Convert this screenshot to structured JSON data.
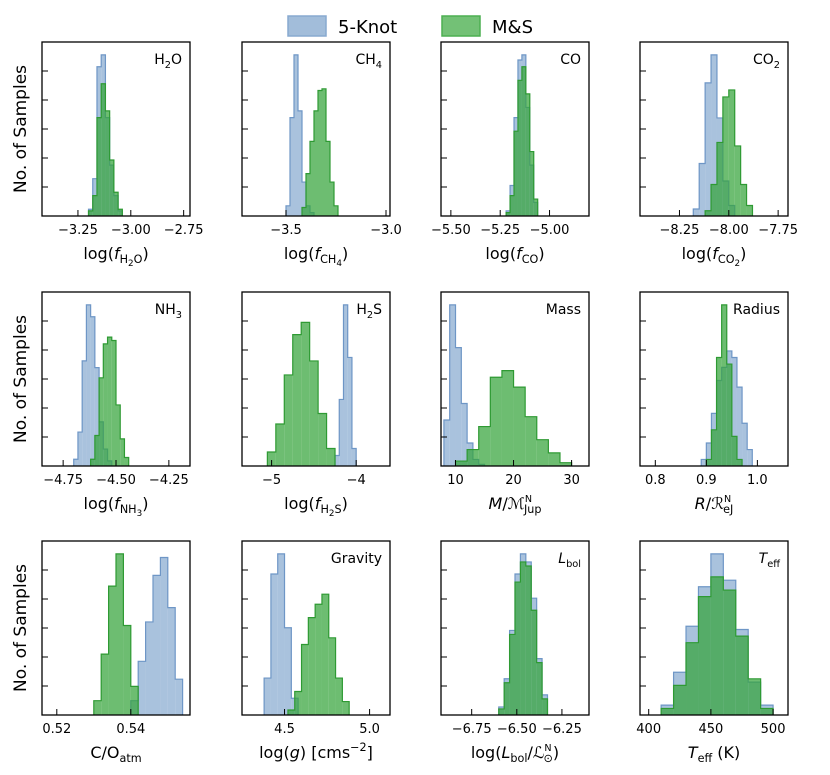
{
  "legend": {
    "items": [
      {
        "label": "5-Knot",
        "color": "#88aad0"
      },
      {
        "label": "M&S",
        "color": "#4caf50"
      }
    ]
  },
  "ylabel": "No. of Samples",
  "chart_data": [
    {
      "type": "histogram",
      "label": "H₂O",
      "xlabel": "log(f_H2O)",
      "xlim": [
        -3.42,
        -2.72
      ],
      "xticks": [
        "−3.25",
        "−3.00",
        "−2.75"
      ],
      "xtickvals": [
        -3.25,
        -3.0,
        -2.75
      ],
      "series": [
        {
          "name": "5-Knot",
          "edges": [
            -3.2,
            -3.18,
            -3.16,
            -3.14,
            -3.12,
            -3.1,
            -3.08,
            -3.06,
            -3.04
          ],
          "counts": [
            4,
            22,
            88,
            95,
            58,
            30,
            12,
            3
          ]
        },
        {
          "name": "M&S",
          "edges": [
            -3.2,
            -3.18,
            -3.16,
            -3.14,
            -3.12,
            -3.1,
            -3.08,
            -3.06,
            -3.04
          ],
          "counts": [
            3,
            12,
            58,
            78,
            62,
            33,
            14,
            4
          ]
        }
      ]
    },
    {
      "type": "histogram",
      "label": "CH₄",
      "xlabel": "log(f_CH4)",
      "xlim": [
        -3.72,
        -2.98
      ],
      "xticks": [
        "−3.5",
        "−3.0"
      ],
      "xtickvals": [
        -3.5,
        -3.0
      ],
      "series": [
        {
          "name": "5-Knot",
          "edges": [
            -3.5,
            -3.48,
            -3.46,
            -3.44,
            -3.42,
            -3.4,
            -3.38,
            -3.36
          ],
          "counts": [
            6,
            58,
            95,
            62,
            20,
            6,
            2
          ]
        },
        {
          "name": "M&S",
          "edges": [
            -3.42,
            -3.4,
            -3.38,
            -3.36,
            -3.34,
            -3.32,
            -3.3,
            -3.28,
            -3.26,
            -3.24
          ],
          "counts": [
            5,
            25,
            44,
            62,
            74,
            75,
            44,
            20,
            6
          ]
        }
      ]
    },
    {
      "type": "histogram",
      "label": "CO",
      "xlabel": "log(f_CO)",
      "xlim": [
        -5.55,
        -4.8
      ],
      "xticks": [
        "−5.50",
        "−5.25",
        "−5.00"
      ],
      "xtickvals": [
        -5.5,
        -5.25,
        -5.0
      ],
      "series": [
        {
          "name": "5-Knot",
          "edges": [
            -5.22,
            -5.2,
            -5.18,
            -5.16,
            -5.14,
            -5.12,
            -5.1,
            -5.08,
            -5.06
          ],
          "counts": [
            3,
            18,
            58,
            92,
            95,
            64,
            30,
            8
          ]
        },
        {
          "name": "M&S",
          "edges": [
            -5.22,
            -5.2,
            -5.18,
            -5.16,
            -5.14,
            -5.12,
            -5.1,
            -5.08,
            -5.06
          ],
          "counts": [
            2,
            12,
            50,
            80,
            88,
            72,
            38,
            10
          ]
        }
      ]
    },
    {
      "type": "histogram",
      "label": "CO₂",
      "xlabel": "log(f_CO2)",
      "xlim": [
        -8.45,
        -7.7
      ],
      "xticks": [
        "−8.25",
        "−8.00",
        "−7.75"
      ],
      "xtickvals": [
        -8.25,
        -8.0,
        -7.75
      ],
      "series": [
        {
          "name": "5-Knot",
          "edges": [
            -8.18,
            -8.15,
            -8.12,
            -8.09,
            -8.06,
            -8.03,
            -8.0,
            -7.97
          ],
          "counts": [
            4,
            30,
            76,
            92,
            56,
            20,
            6
          ]
        },
        {
          "name": "M&S",
          "edges": [
            -8.12,
            -8.09,
            -8.06,
            -8.03,
            -8.0,
            -7.97,
            -7.94,
            -7.91,
            -7.88
          ],
          "counts": [
            3,
            18,
            42,
            68,
            72,
            40,
            18,
            6
          ]
        }
      ]
    },
    {
      "type": "histogram",
      "label": "NH₃",
      "xlabel": "log(f_NH3)",
      "xlim": [
        -4.85,
        -4.15
      ],
      "xticks": [
        "−4.75",
        "−4.50",
        "−4.25"
      ],
      "xtickvals": [
        -4.75,
        -4.5,
        -4.25
      ],
      "series": [
        {
          "name": "5-Knot",
          "edges": [
            -4.7,
            -4.68,
            -4.66,
            -4.64,
            -4.62,
            -4.6,
            -4.58,
            -4.56,
            -4.54,
            -4.52
          ],
          "counts": [
            4,
            20,
            62,
            95,
            88,
            58,
            26,
            10,
            3
          ]
        },
        {
          "name": "M&S",
          "edges": [
            -4.62,
            -4.6,
            -4.58,
            -4.56,
            -4.54,
            -4.52,
            -4.5,
            -4.48,
            -4.46,
            -4.44
          ],
          "counts": [
            4,
            18,
            52,
            72,
            76,
            74,
            36,
            16,
            5
          ]
        }
      ]
    },
    {
      "type": "histogram",
      "label": "H₂S",
      "xlabel": "log(f_H2S)",
      "xlim": [
        -5.35,
        -3.6
      ],
      "xticks": [
        "−5",
        "−4"
      ],
      "xtickvals": [
        -5,
        -4
      ],
      "series": [
        {
          "name": "5-Knot",
          "edges": [
            -4.25,
            -4.2,
            -4.15,
            -4.1,
            -4.05,
            -4.0
          ],
          "counts": [
            6,
            38,
            92,
            62,
            10
          ]
        },
        {
          "name": "M&S",
          "edges": [
            -5.05,
            -4.95,
            -4.85,
            -4.75,
            -4.65,
            -4.55,
            -4.45,
            -4.35,
            -4.25
          ],
          "counts": [
            8,
            24,
            52,
            75,
            82,
            60,
            30,
            10
          ]
        }
      ]
    },
    {
      "type": "histogram",
      "label": "Mass",
      "xlabel": "M/M_Jup^N",
      "xlim": [
        7.5,
        33
      ],
      "xticks": [
        "10",
        "20",
        "30"
      ],
      "xtickvals": [
        10,
        20,
        30
      ],
      "series": [
        {
          "name": "5-Knot",
          "edges": [
            8,
            9,
            10,
            11,
            12,
            13,
            14,
            15
          ],
          "counts": [
            28,
            98,
            72,
            38,
            14,
            4,
            1
          ]
        },
        {
          "name": "M&S",
          "edges": [
            10,
            12,
            14,
            16,
            18,
            20,
            22,
            24,
            26,
            28,
            30
          ],
          "counts": [
            3,
            10,
            24,
            54,
            58,
            48,
            30,
            16,
            8,
            2
          ]
        }
      ]
    },
    {
      "type": "histogram",
      "label": "Radius",
      "xlabel": "R/R_eJ^N",
      "xlim": [
        0.77,
        1.06
      ],
      "xticks": [
        "0.8",
        "0.9",
        "1.0"
      ],
      "xtickvals": [
        0.8,
        0.9,
        1.0
      ],
      "series": [
        {
          "name": "5-Knot",
          "edges": [
            0.89,
            0.9,
            0.91,
            0.92,
            0.93,
            0.94,
            0.95,
            0.96,
            0.97,
            0.98,
            0.99
          ],
          "counts": [
            4,
            14,
            32,
            52,
            60,
            70,
            66,
            48,
            26,
            10
          ]
        },
        {
          "name": "M&S",
          "edges": [
            0.9,
            0.91,
            0.92,
            0.93,
            0.94,
            0.95,
            0.96,
            0.97
          ],
          "counts": [
            4,
            22,
            66,
            98,
            62,
            18,
            4
          ]
        }
      ]
    },
    {
      "type": "histogram",
      "label": "",
      "xlabel": "C/O_atm",
      "xlim": [
        0.516,
        0.556
      ],
      "xticks": [
        "0.52",
        "0.54"
      ],
      "xtickvals": [
        0.52,
        0.54
      ],
      "series": [
        {
          "name": "5-Knot",
          "edges": [
            0.54,
            0.542,
            0.544,
            0.546,
            0.548,
            0.55,
            0.552,
            0.554
          ],
          "counts": [
            8,
            30,
            52,
            78,
            88,
            60,
            20
          ]
        },
        {
          "name": "M&S",
          "edges": [
            0.53,
            0.532,
            0.534,
            0.536,
            0.538,
            0.54,
            0.542
          ],
          "counts": [
            8,
            34,
            72,
            90,
            50,
            16
          ]
        }
      ]
    },
    {
      "type": "histogram",
      "label": "Gravity",
      "xlabel": "log(g) [cms⁻²]",
      "xlim": [
        4.25,
        5.12
      ],
      "xticks": [
        "4.5",
        "5.0"
      ],
      "xtickvals": [
        4.5,
        5.0
      ],
      "series": [
        {
          "name": "5-Knot",
          "edges": [
            4.38,
            4.42,
            4.46,
            4.5,
            4.54,
            4.58
          ],
          "counts": [
            22,
            84,
            96,
            52,
            10
          ]
        },
        {
          "name": "M&S",
          "edges": [
            4.52,
            4.56,
            4.6,
            4.64,
            4.68,
            4.72,
            4.76,
            4.8,
            4.84,
            4.88
          ],
          "counts": [
            3,
            14,
            42,
            58,
            66,
            72,
            46,
            22,
            8
          ]
        }
      ]
    },
    {
      "type": "histogram",
      "label": "L_bol",
      "xlabel": "log(L_bol/L_⊙^N)",
      "xlim": [
        -6.92,
        -6.1
      ],
      "xticks": [
        "−6.75",
        "−6.50",
        "−6.25"
      ],
      "xtickvals": [
        -6.75,
        -6.5,
        -6.25
      ],
      "series": [
        {
          "name": "5-Knot",
          "edges": [
            -6.6,
            -6.57,
            -6.54,
            -6.51,
            -6.48,
            -6.45,
            -6.42,
            -6.39,
            -6.36,
            -6.33
          ],
          "counts": [
            4,
            18,
            42,
            70,
            80,
            76,
            58,
            28,
            10
          ]
        },
        {
          "name": "M&S",
          "edges": [
            -6.6,
            -6.57,
            -6.54,
            -6.51,
            -6.48,
            -6.45,
            -6.42,
            -6.39,
            -6.36,
            -6.33
          ],
          "counts": [
            3,
            16,
            40,
            66,
            76,
            74,
            52,
            26,
            8
          ]
        }
      ]
    },
    {
      "type": "histogram",
      "label": "T_eff",
      "xlabel": "T_eff (K)",
      "xlim": [
        393,
        512
      ],
      "xticks": [
        "400",
        "450",
        "500"
      ],
      "xtickvals": [
        400,
        450,
        500
      ],
      "series": [
        {
          "name": "5-Knot",
          "edges": [
            410,
            420,
            430,
            440,
            450,
            460,
            470,
            480,
            490,
            500
          ],
          "counts": [
            6,
            26,
            54,
            78,
            98,
            82,
            52,
            20,
            6
          ]
        },
        {
          "name": "M&S",
          "edges": [
            410,
            420,
            430,
            440,
            450,
            460,
            470,
            480,
            490,
            500
          ],
          "counts": [
            4,
            18,
            44,
            72,
            84,
            76,
            48,
            22,
            4
          ]
        }
      ]
    }
  ]
}
